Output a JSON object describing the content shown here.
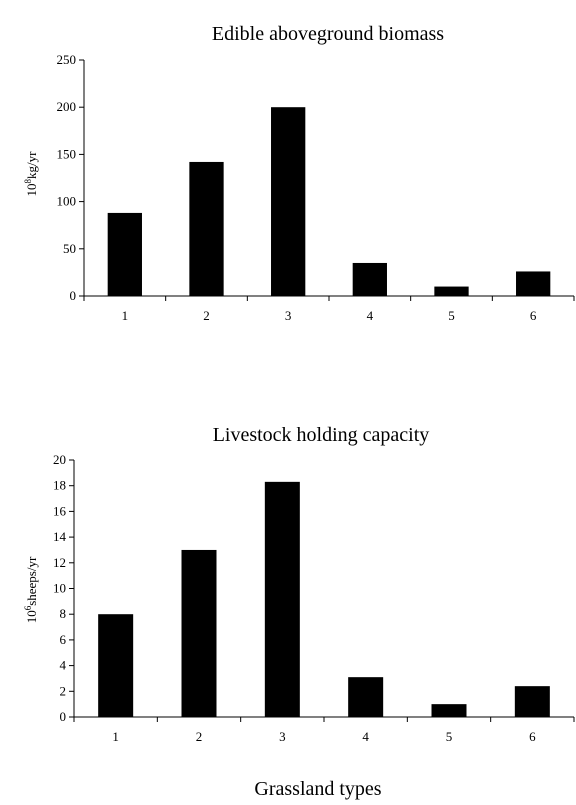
{
  "chart_data": [
    {
      "type": "bar",
      "title": "Edible aboveground biomass",
      "ylabel_base": "10",
      "ylabel_exp": "8",
      "ylabel_unit": "kg/yr",
      "xlabel": "",
      "categories": [
        "1",
        "2",
        "3",
        "4",
        "5",
        "6"
      ],
      "values": [
        88,
        142,
        200,
        35,
        10,
        26
      ],
      "ylim": [
        0,
        250
      ],
      "yticks": [
        0,
        50,
        100,
        150,
        200,
        250
      ],
      "grid": false,
      "bar_color": "#000000"
    },
    {
      "type": "bar",
      "title": "Livestock holding capacity",
      "ylabel_base": "10",
      "ylabel_exp": "6",
      "ylabel_unit": "sheeps/yr",
      "xlabel": "Grassland types",
      "categories": [
        "1",
        "2",
        "3",
        "4",
        "5",
        "6"
      ],
      "values": [
        8.0,
        13.0,
        18.3,
        3.1,
        1.0,
        2.4
      ],
      "ylim": [
        0,
        20
      ],
      "yticks": [
        0,
        2,
        4,
        6,
        8,
        10,
        12,
        14,
        16,
        18,
        20
      ],
      "grid": false,
      "bar_color": "#000000"
    }
  ]
}
